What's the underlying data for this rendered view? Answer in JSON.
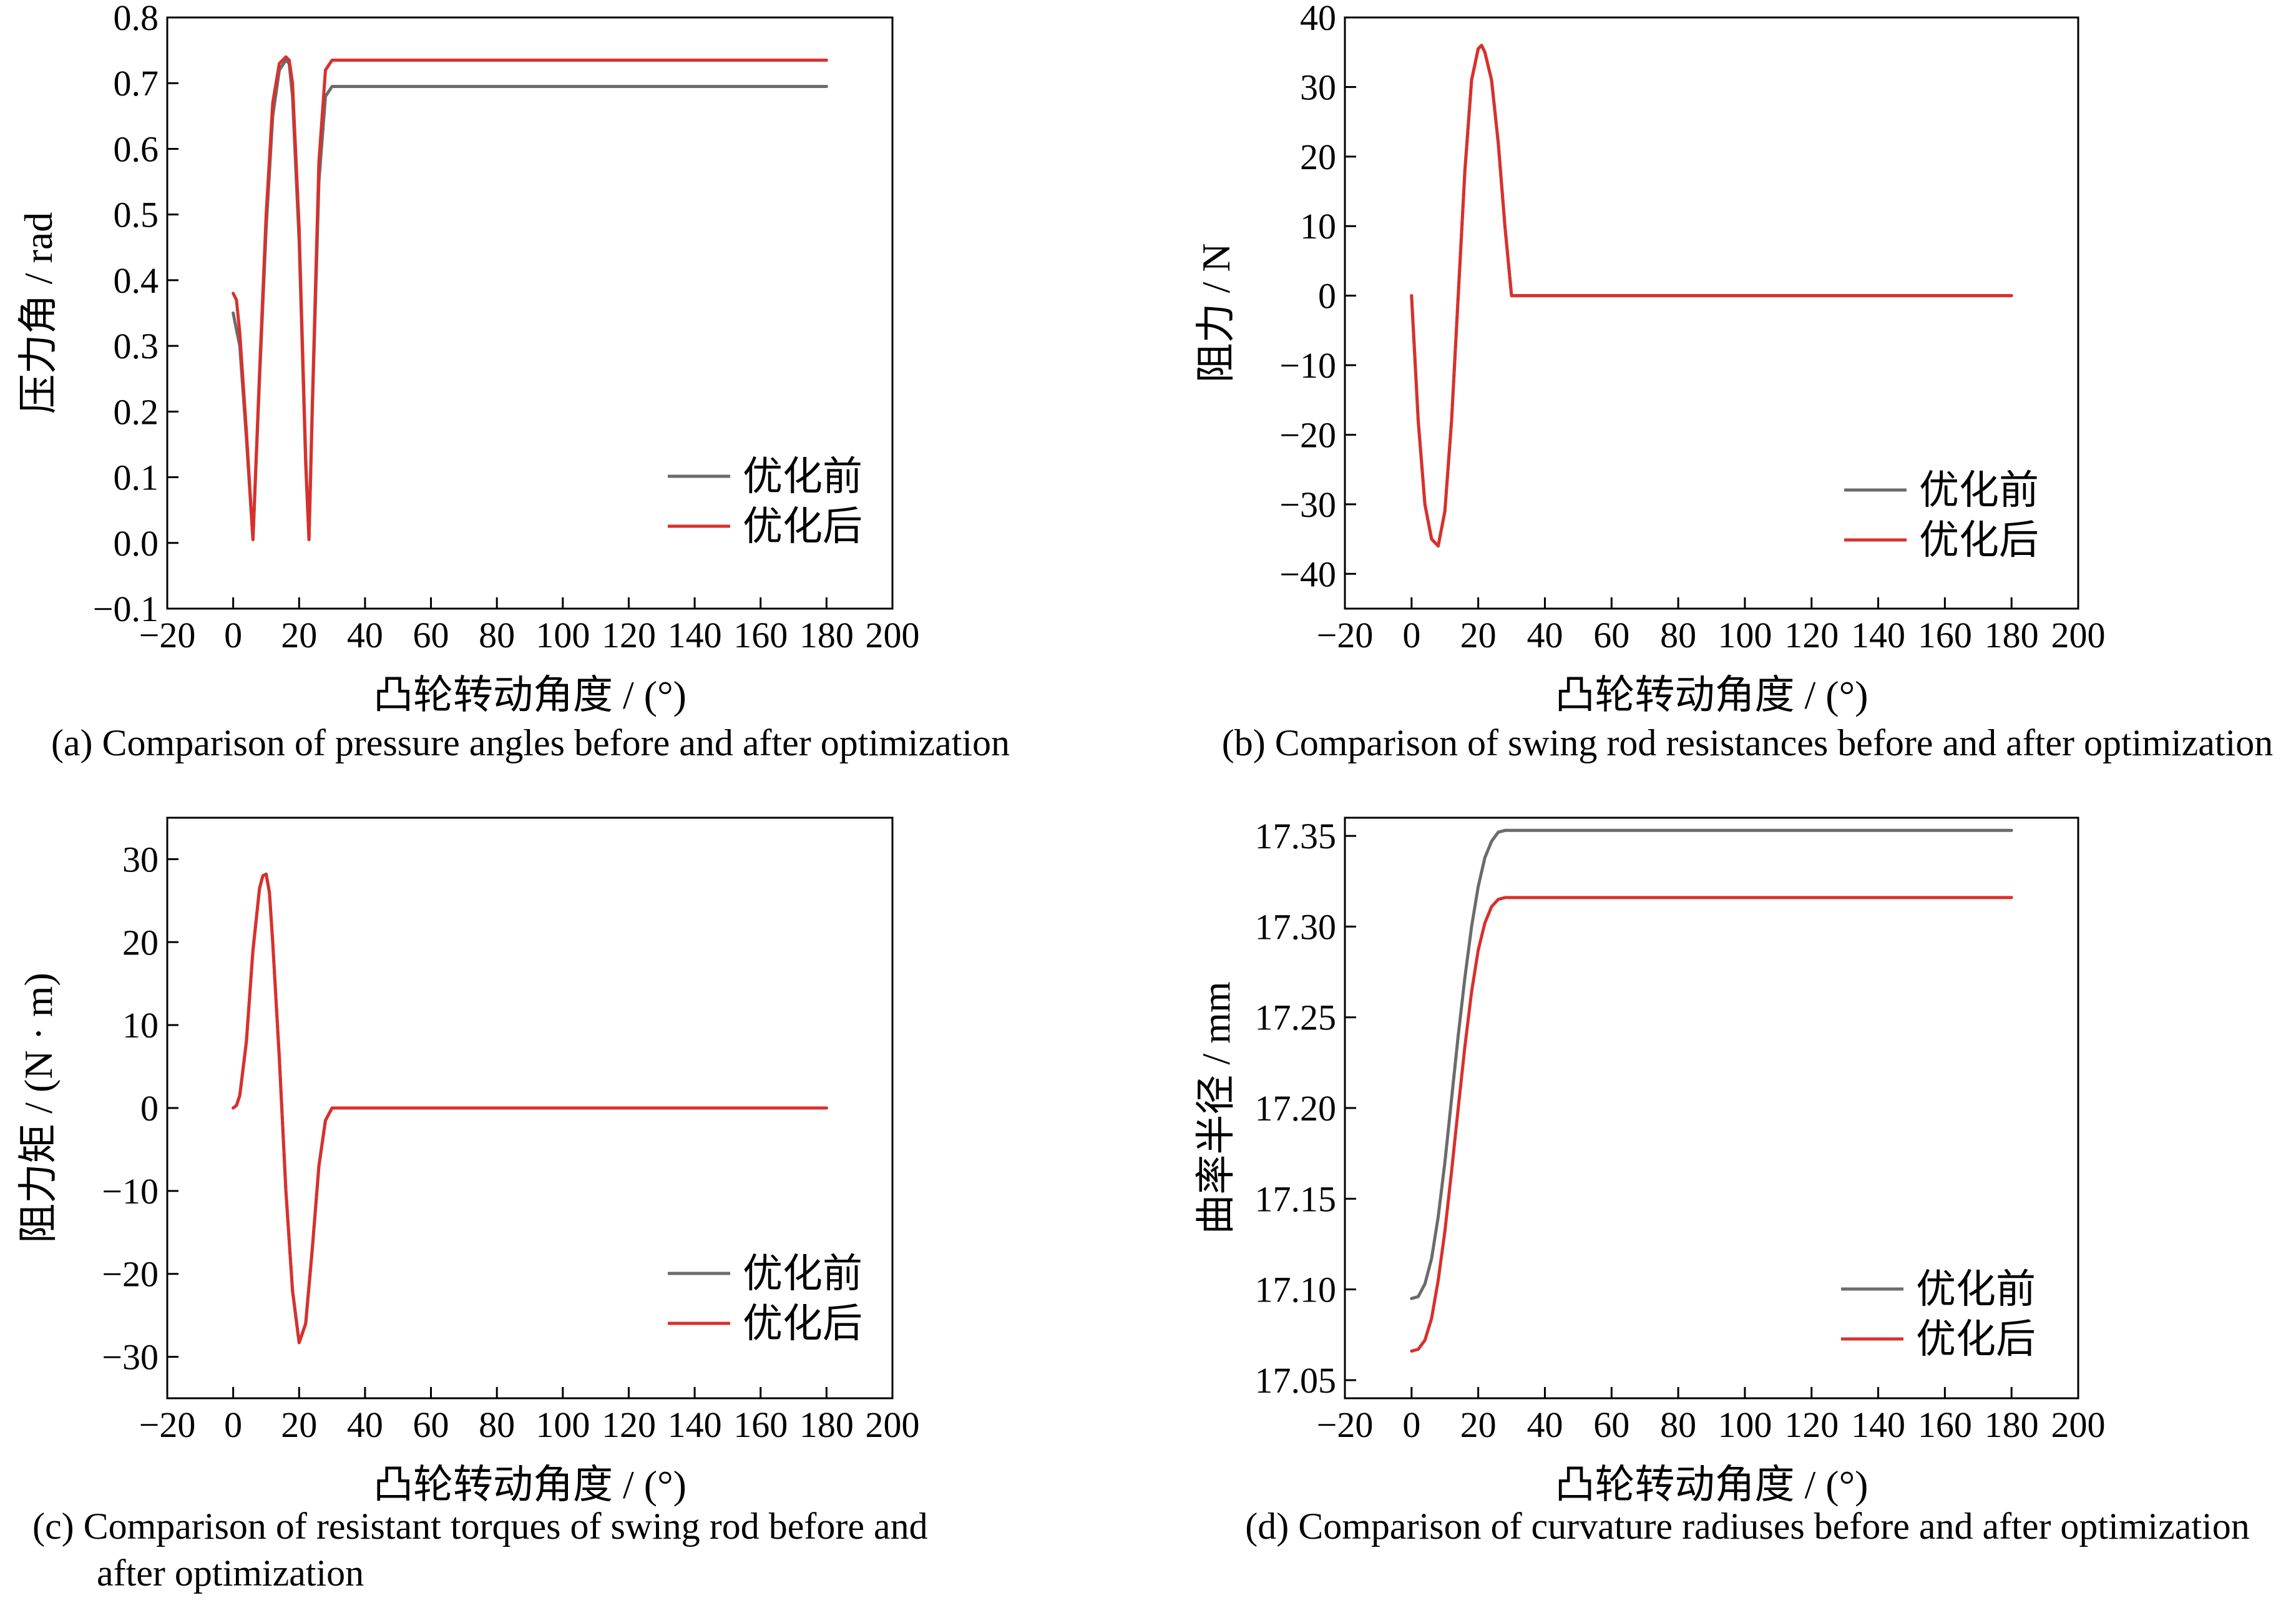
{
  "chart_data": [
    {
      "type": "line",
      "caption": "(a) Comparison of pressure angles before and after optimization",
      "xlabel": "凸轮转动角度 / (°)",
      "ylabel": "压力角 / rad",
      "xlim": [
        -20,
        200
      ],
      "ylim": [
        -0.1,
        0.8
      ],
      "xticks": [
        -20,
        0,
        20,
        40,
        60,
        80,
        100,
        120,
        140,
        160,
        180,
        200
      ],
      "yticks": [
        -0.1,
        0.0,
        0.1,
        0.2,
        0.3,
        0.4,
        0.5,
        0.6,
        0.7,
        0.8
      ],
      "ytick_labels": [
        "−0.1",
        "0.0",
        "0.1",
        "0.2",
        "0.3",
        "0.4",
        "0.5",
        "0.6",
        "0.7",
        "0.8"
      ],
      "legend_position": "lower-right",
      "series": [
        {
          "name": "优化前",
          "color": "#6b6b6b",
          "x": [
            0,
            2,
            4,
            6,
            8,
            10,
            12,
            14,
            16,
            17,
            18,
            20,
            22,
            23,
            24,
            26,
            28,
            30,
            40,
            60,
            90,
            120,
            150,
            180
          ],
          "y": [
            0.35,
            0.3,
            0.16,
            0.005,
            0.25,
            0.48,
            0.65,
            0.72,
            0.735,
            0.73,
            0.68,
            0.46,
            0.12,
            0.005,
            0.2,
            0.55,
            0.68,
            0.695,
            0.695,
            0.695,
            0.695,
            0.695,
            0.695,
            0.695
          ]
        },
        {
          "name": "优化后",
          "color": "#d9302c",
          "x": [
            0,
            1,
            2,
            4,
            6,
            8,
            10,
            12,
            14,
            16,
            17,
            18,
            20,
            22,
            23,
            24,
            26,
            28,
            30,
            40,
            60,
            90,
            120,
            150,
            180
          ],
          "y": [
            0.38,
            0.37,
            0.32,
            0.17,
            0.005,
            0.26,
            0.5,
            0.67,
            0.73,
            0.74,
            0.735,
            0.7,
            0.48,
            0.13,
            0.005,
            0.21,
            0.58,
            0.72,
            0.735,
            0.735,
            0.735,
            0.735,
            0.735,
            0.735,
            0.735
          ]
        }
      ]
    },
    {
      "type": "line",
      "caption": "(b) Comparison of swing rod resistances before and after optimization",
      "xlabel": "凸轮转动角度 / (°)",
      "ylabel": "阻力 / N",
      "xlim": [
        -20,
        200
      ],
      "ylim": [
        -45,
        40
      ],
      "xticks": [
        -20,
        0,
        20,
        40,
        60,
        80,
        100,
        120,
        140,
        160,
        180,
        200
      ],
      "yticks": [
        -40,
        -30,
        -20,
        -10,
        0,
        10,
        20,
        30,
        40
      ],
      "ytick_labels": [
        "−40",
        "−30",
        "−20",
        "−10",
        "0",
        "10",
        "20",
        "30",
        "40"
      ],
      "legend_position": "lower-right",
      "series": [
        {
          "name": "优化前",
          "color": "#6b6b6b",
          "x": [
            0,
            2,
            4,
            6,
            8,
            10,
            12,
            14,
            16,
            18,
            20,
            21,
            22,
            24,
            26,
            28,
            30,
            40,
            60,
            90,
            120,
            150,
            180
          ],
          "y": [
            0,
            -18,
            -30,
            -35,
            -36,
            -31,
            -18,
            0,
            18,
            31,
            35.5,
            36,
            35,
            31,
            22,
            10,
            0,
            0,
            0,
            0,
            0,
            0,
            0
          ]
        },
        {
          "name": "优化后",
          "color": "#d9302c",
          "x": [
            0,
            2,
            4,
            6,
            8,
            10,
            12,
            14,
            16,
            18,
            20,
            21,
            22,
            24,
            26,
            28,
            30,
            40,
            60,
            90,
            120,
            150,
            180
          ],
          "y": [
            0,
            -18,
            -30,
            -35,
            -36,
            -31,
            -18,
            0,
            18,
            31,
            35.5,
            36,
            35,
            31,
            22,
            10,
            0,
            0,
            0,
            0,
            0,
            0,
            0
          ]
        }
      ]
    },
    {
      "type": "line",
      "caption": "(c) Comparison of resistant torques of swing rod before and after optimization",
      "caption_lines": [
        "(c) Comparison of resistant torques of swing rod before and",
        "after optimization"
      ],
      "xlabel": "凸轮转动角度 / (°)",
      "ylabel": "阻力矩 / (N · m)",
      "xlim": [
        -20,
        200
      ],
      "ylim": [
        -35,
        35
      ],
      "xticks": [
        -20,
        0,
        20,
        40,
        60,
        80,
        100,
        120,
        140,
        160,
        180,
        200
      ],
      "yticks": [
        -30,
        -20,
        -10,
        0,
        10,
        20,
        30
      ],
      "ytick_labels": [
        "−30",
        "−20",
        "−10",
        "0",
        "10",
        "20",
        "30"
      ],
      "legend_position": "lower-right",
      "series": [
        {
          "name": "优化前",
          "color": "#6b6b6b",
          "x": [
            0,
            1,
            2,
            4,
            6,
            8,
            9,
            10,
            11,
            12,
            14,
            16,
            18,
            20,
            22,
            24,
            26,
            28,
            30,
            40,
            60,
            90,
            120,
            150,
            180
          ],
          "y": [
            0,
            0.3,
            1.5,
            8,
            19,
            26.5,
            28,
            28.2,
            26,
            20,
            6,
            -10,
            -22,
            -28.3,
            -26,
            -17,
            -7,
            -1.5,
            0,
            0,
            0,
            0,
            0,
            0,
            0
          ]
        },
        {
          "name": "优化后",
          "color": "#d9302c",
          "x": [
            0,
            1,
            2,
            4,
            6,
            8,
            9,
            10,
            11,
            12,
            14,
            16,
            18,
            20,
            22,
            24,
            26,
            28,
            30,
            40,
            60,
            90,
            120,
            150,
            180
          ],
          "y": [
            0,
            0.3,
            1.5,
            8,
            19,
            26.5,
            28,
            28.2,
            26,
            20,
            6,
            -10,
            -22,
            -28.3,
            -26,
            -17,
            -7,
            -1.5,
            0,
            0,
            0,
            0,
            0,
            0,
            0
          ]
        }
      ]
    },
    {
      "type": "line",
      "caption": "(d) Comparison of curvature radiuses before and after optimization",
      "xlabel": "凸轮转动角度 / (°)",
      "ylabel": "曲率半径 / mm",
      "xlim": [
        -20,
        200
      ],
      "ylim": [
        17.04,
        17.36
      ],
      "xticks": [
        -20,
        0,
        20,
        40,
        60,
        80,
        100,
        120,
        140,
        160,
        180,
        200
      ],
      "yticks": [
        17.05,
        17.1,
        17.15,
        17.2,
        17.25,
        17.3,
        17.35
      ],
      "ytick_labels": [
        "17.05",
        "17.10",
        "17.15",
        "17.20",
        "17.25",
        "17.30",
        "17.35"
      ],
      "legend_position": "lower-right",
      "series": [
        {
          "name": "优化前",
          "color": "#6b6b6b",
          "x": [
            0,
            2,
            4,
            6,
            8,
            10,
            12,
            14,
            16,
            18,
            20,
            22,
            24,
            26,
            28,
            30,
            40,
            60,
            90,
            120,
            150,
            180
          ],
          "y": [
            17.095,
            17.096,
            17.103,
            17.117,
            17.14,
            17.17,
            17.205,
            17.24,
            17.272,
            17.3,
            17.322,
            17.338,
            17.347,
            17.352,
            17.353,
            17.353,
            17.353,
            17.353,
            17.353,
            17.353,
            17.353,
            17.353
          ]
        },
        {
          "name": "优化后",
          "color": "#d9302c",
          "x": [
            0,
            2,
            4,
            6,
            8,
            10,
            12,
            14,
            16,
            18,
            20,
            22,
            24,
            26,
            28,
            30,
            40,
            60,
            90,
            120,
            150,
            180
          ],
          "y": [
            17.066,
            17.067,
            17.072,
            17.084,
            17.105,
            17.132,
            17.165,
            17.2,
            17.234,
            17.264,
            17.287,
            17.302,
            17.311,
            17.315,
            17.316,
            17.316,
            17.316,
            17.316,
            17.316,
            17.316,
            17.316,
            17.316
          ]
        }
      ]
    }
  ]
}
